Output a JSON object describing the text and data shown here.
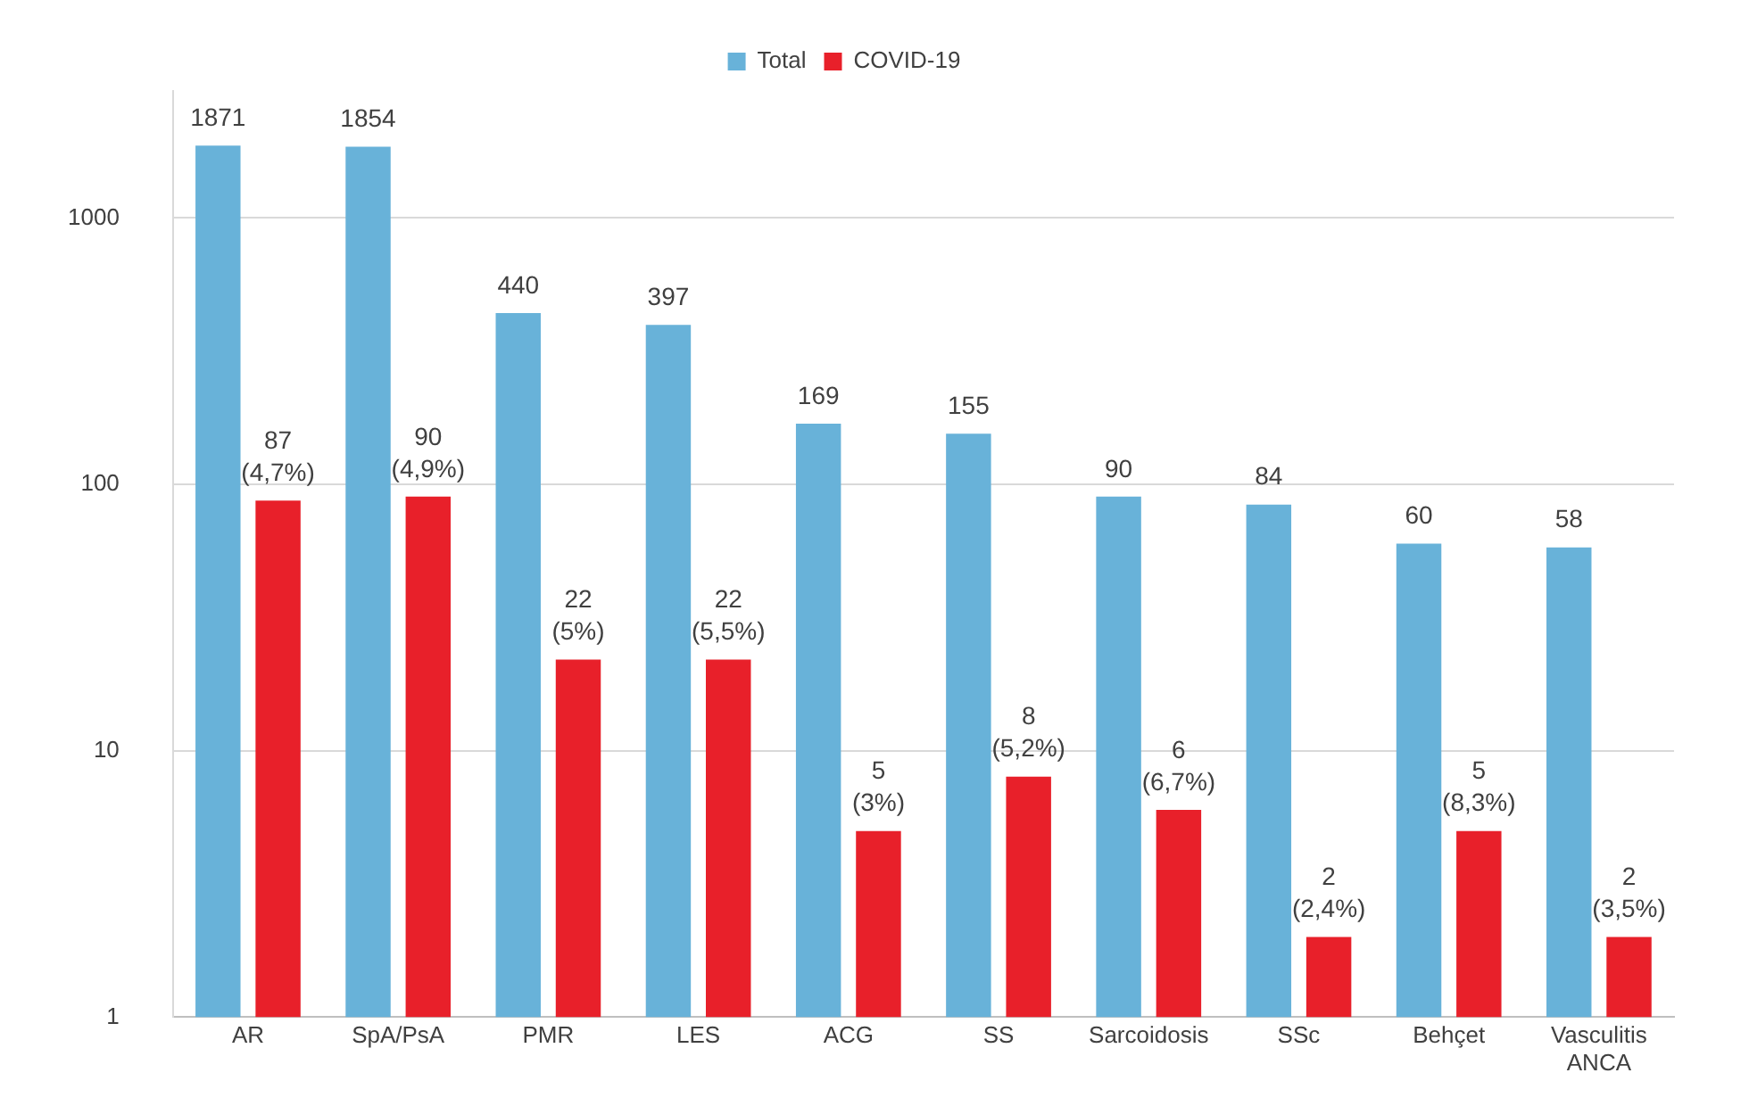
{
  "chart_data": {
    "type": "bar",
    "categories": [
      "AR",
      "SpA/PsA",
      "PMR",
      "LES",
      "ACG",
      "SS",
      "Sarcoidosis",
      "SSc",
      "Behçet",
      "Vasculitis ANCA"
    ],
    "series": [
      {
        "name": "Total",
        "color": "#68b2d9",
        "values": [
          1871,
          1854,
          440,
          397,
          169,
          155,
          90,
          84,
          60,
          58
        ],
        "value_labels": [
          "1871",
          "1854",
          "440",
          "397",
          "169",
          "155",
          "90",
          "84",
          "60",
          "58"
        ]
      },
      {
        "name": "COVID-19",
        "color": "#e8202a",
        "values": [
          87,
          90,
          22,
          22,
          5,
          8,
          6,
          2,
          5,
          2
        ],
        "value_labels": [
          "87\n(4,7%)",
          "90\n(4,9%)",
          "22\n(5%)",
          "22\n(5,5%)",
          "5\n(3%)",
          "8\n(5,2%)",
          "6\n(6,7%)",
          "2\n(2,4%)",
          "5\n(8,3%)",
          "2\n(3,5%)"
        ]
      }
    ],
    "log": "y",
    "ylim": [
      1,
      3000
    ],
    "yticks": [
      1,
      10,
      100,
      1000
    ],
    "grid": "y",
    "legend": "top"
  }
}
